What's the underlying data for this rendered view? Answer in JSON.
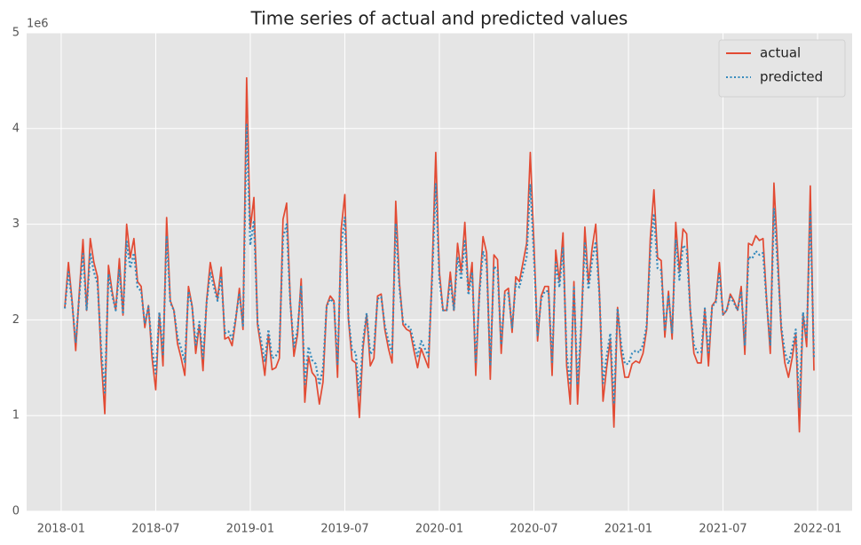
{
  "chart_data": {
    "type": "line",
    "title": "Time series of actual and predicted values",
    "y_offset_label": "1e6",
    "x": [
      1,
      2,
      3,
      4,
      5,
      6,
      7,
      8,
      9,
      10,
      11,
      12,
      13,
      14,
      15,
      16,
      17,
      18,
      19,
      20,
      21,
      22,
      23,
      24,
      25,
      26,
      27,
      28,
      29,
      30,
      31,
      32,
      33,
      34,
      35,
      36,
      37,
      38,
      39,
      40,
      41,
      42,
      43,
      44,
      45,
      46,
      47,
      48,
      49,
      50,
      51,
      52,
      53,
      54,
      55,
      56,
      57,
      58,
      59,
      60,
      61,
      62,
      63,
      64,
      65,
      66,
      67,
      68,
      69,
      70,
      71,
      72,
      73,
      74,
      75,
      76,
      77,
      78,
      79,
      80,
      81,
      82,
      83,
      84,
      85,
      86,
      87,
      88,
      89,
      90,
      91,
      92,
      93,
      94,
      95,
      96,
      97,
      98,
      99,
      100,
      101,
      102,
      103,
      104,
      105,
      106,
      107,
      108,
      109,
      110,
      111,
      112,
      113,
      114,
      115,
      116,
      117,
      118,
      119,
      120,
      121,
      122,
      123,
      124,
      125,
      126,
      127,
      128,
      129,
      130,
      131,
      132,
      133,
      134,
      135,
      136,
      137,
      138,
      139,
      140,
      141,
      142,
      143,
      144,
      145,
      146,
      147,
      148,
      149,
      150,
      151,
      152,
      153,
      154,
      155,
      156,
      157,
      158,
      159,
      160,
      161,
      162,
      163,
      164,
      165,
      166,
      167,
      168,
      169,
      170,
      171,
      172,
      173,
      174,
      175,
      176,
      177,
      178,
      179,
      180,
      181,
      182,
      183,
      184,
      185,
      186,
      187,
      188,
      189,
      190,
      191,
      192,
      193,
      194,
      195,
      196,
      197,
      198,
      199,
      200,
      201,
      202,
      203,
      204,
      205,
      206,
      207
    ],
    "series": [
      {
        "name": "actual",
        "color": "#e24a33",
        "dash": "solid",
        "values": [
          2.13,
          2.6,
          2.2,
          1.68,
          2.3,
          2.84,
          2.1,
          2.85,
          2.6,
          2.45,
          1.6,
          1.02,
          2.57,
          2.3,
          2.1,
          2.64,
          2.05,
          3.0,
          2.65,
          2.85,
          2.4,
          2.35,
          1.92,
          2.15,
          1.6,
          1.27,
          2.07,
          1.52,
          3.07,
          2.2,
          2.1,
          1.75,
          1.6,
          1.42,
          2.35,
          2.15,
          1.65,
          1.95,
          1.47,
          2.2,
          2.6,
          2.4,
          2.22,
          2.55,
          1.8,
          1.82,
          1.73,
          2.0,
          2.33,
          1.9,
          4.53,
          2.95,
          3.28,
          1.95,
          1.7,
          1.42,
          1.85,
          1.48,
          1.5,
          1.6,
          3.05,
          3.22,
          2.2,
          1.62,
          1.85,
          2.43,
          1.14,
          1.62,
          1.45,
          1.4,
          1.12,
          1.35,
          2.15,
          2.25,
          2.2,
          1.4,
          2.95,
          3.31,
          2.0,
          1.58,
          1.55,
          0.98,
          1.7,
          2.06,
          1.52,
          1.6,
          2.25,
          2.27,
          1.9,
          1.7,
          1.55,
          3.24,
          2.4,
          1.95,
          1.9,
          1.88,
          1.68,
          1.5,
          1.7,
          1.6,
          1.5,
          2.5,
          3.75,
          2.5,
          2.1,
          2.1,
          2.5,
          2.1,
          2.8,
          2.5,
          3.02,
          2.3,
          2.6,
          1.42,
          2.3,
          2.87,
          2.7,
          1.38,
          2.68,
          2.63,
          1.65,
          2.3,
          2.33,
          1.87,
          2.45,
          2.4,
          2.6,
          2.8,
          3.75,
          2.8,
          1.78,
          2.25,
          2.35,
          2.35,
          1.42,
          2.73,
          2.4,
          2.91,
          1.52,
          1.12,
          2.4,
          1.12,
          1.9,
          2.97,
          2.38,
          2.75,
          3.0,
          2.3,
          1.15,
          1.5,
          1.8,
          0.88,
          2.13,
          1.65,
          1.4,
          1.4,
          1.54,
          1.57,
          1.55,
          1.65,
          1.9,
          2.85,
          3.36,
          2.65,
          2.62,
          1.82,
          2.3,
          1.8,
          3.02,
          2.5,
          2.95,
          2.9,
          2.1,
          1.65,
          1.55,
          1.55,
          2.12,
          1.52,
          2.15,
          2.2,
          2.6,
          2.05,
          2.1,
          2.27,
          2.2,
          2.1,
          2.35,
          1.64,
          2.8,
          2.78,
          2.88,
          2.83,
          2.85,
          2.2,
          1.65,
          3.43,
          2.7,
          1.9,
          1.55,
          1.4,
          1.6,
          1.85,
          0.83,
          2.07,
          1.72,
          3.4,
          1.47
        ]
      },
      {
        "name": "predicted",
        "color": "#348abd",
        "dash": "dotted",
        "values": [
          2.12,
          2.5,
          2.18,
          1.76,
          2.26,
          2.69,
          2.1,
          2.7,
          2.5,
          2.38,
          1.7,
          1.24,
          2.48,
          2.26,
          2.1,
          2.53,
          2.06,
          2.82,
          2.54,
          2.7,
          2.34,
          2.3,
          1.96,
          2.14,
          1.7,
          1.44,
          2.08,
          1.64,
          2.88,
          2.18,
          2.1,
          1.82,
          1.7,
          1.56,
          2.3,
          2.14,
          1.74,
          1.98,
          1.6,
          2.18,
          2.5,
          2.34,
          2.2,
          2.46,
          1.86,
          1.88,
          1.8,
          2.02,
          2.28,
          1.94,
          4.04,
          2.78,
          3.04,
          1.98,
          1.78,
          1.56,
          1.9,
          1.6,
          1.62,
          1.7,
          2.86,
          3.0,
          2.18,
          1.72,
          1.9,
          2.36,
          1.33,
          1.72,
          1.58,
          1.54,
          1.32,
          1.5,
          2.14,
          2.22,
          2.18,
          1.54,
          2.78,
          3.07,
          2.02,
          1.68,
          1.66,
          1.2,
          1.78,
          2.07,
          1.64,
          1.7,
          2.22,
          2.24,
          1.94,
          1.78,
          1.66,
          3.01,
          2.34,
          1.98,
          1.94,
          1.92,
          1.76,
          1.62,
          1.78,
          1.7,
          1.62,
          2.42,
          3.42,
          2.42,
          2.1,
          2.1,
          2.42,
          2.1,
          2.66,
          2.42,
          2.84,
          2.26,
          2.5,
          1.56,
          2.26,
          2.72,
          2.58,
          1.52,
          2.56,
          2.52,
          1.74,
          2.26,
          2.28,
          1.92,
          2.38,
          2.34,
          2.5,
          2.66,
          3.42,
          2.66,
          1.84,
          2.22,
          2.3,
          2.3,
          1.56,
          2.6,
          2.34,
          2.75,
          1.64,
          1.32,
          2.34,
          1.32,
          1.94,
          2.8,
          2.32,
          2.62,
          2.82,
          2.26,
          1.34,
          1.62,
          1.86,
          1.12,
          2.12,
          1.74,
          1.54,
          1.54,
          1.65,
          1.68,
          1.66,
          1.74,
          1.94,
          2.7,
          3.11,
          2.54,
          2.52,
          1.88,
          2.26,
          1.86,
          2.84,
          2.42,
          2.78,
          2.74,
          2.1,
          1.74,
          1.66,
          1.66,
          2.12,
          1.64,
          2.14,
          2.18,
          2.5,
          2.06,
          2.1,
          2.24,
          2.18,
          2.1,
          2.3,
          1.73,
          2.66,
          2.64,
          2.72,
          2.68,
          2.7,
          2.18,
          1.74,
          3.16,
          2.58,
          1.94,
          1.66,
          1.54,
          1.7,
          1.9,
          1.08,
          2.08,
          1.8,
          3.14,
          1.6
        ]
      }
    ],
    "xlim": [
      -9.5,
      217.5
    ],
    "xticks": [
      {
        "value": 0,
        "label": "2018-01"
      },
      {
        "value": 26,
        "label": "2018-07"
      },
      {
        "value": 52,
        "label": "2019-01"
      },
      {
        "value": 78,
        "label": "2019-07"
      },
      {
        "value": 104,
        "label": "2020-01"
      },
      {
        "value": 130,
        "label": "2020-07"
      },
      {
        "value": 156,
        "label": "2021-01"
      },
      {
        "value": 182,
        "label": "2021-07"
      },
      {
        "value": 208,
        "label": "2022-01"
      }
    ],
    "ylim": [
      0,
      5
    ],
    "yticks": [
      0,
      1,
      2,
      3,
      4,
      5
    ],
    "grid": true,
    "legend": "upper-right"
  }
}
